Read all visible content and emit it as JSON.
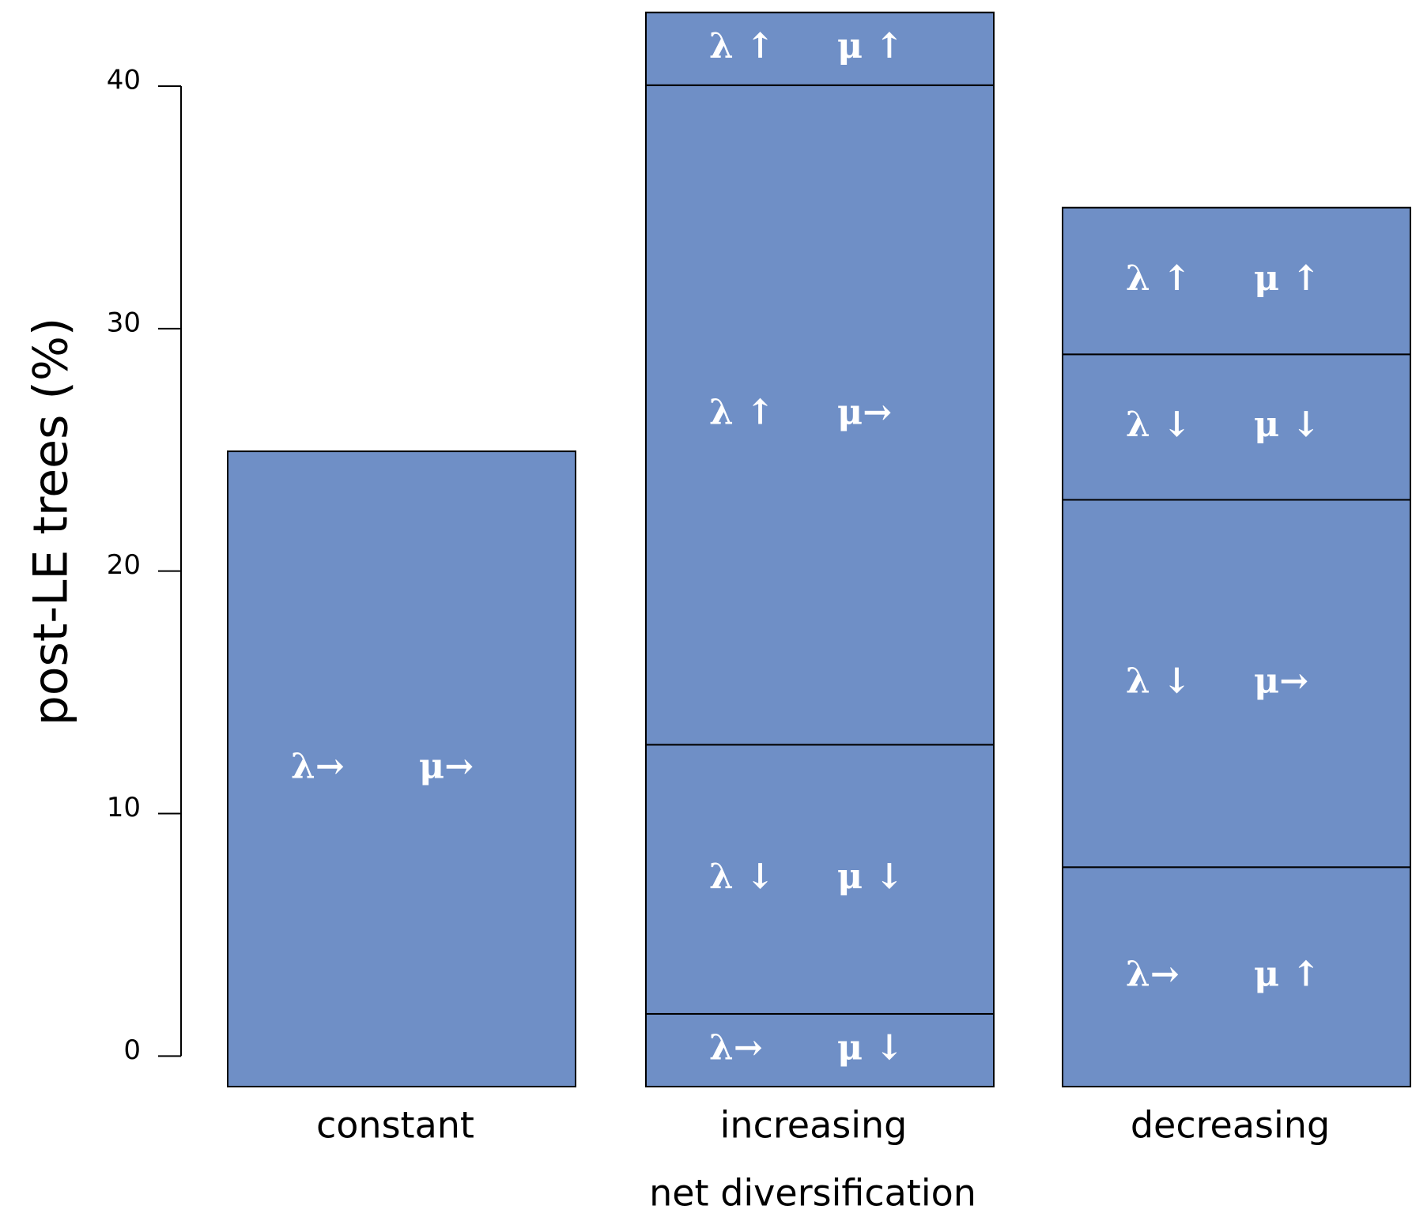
{
  "chart_data": {
    "type": "stacked-bar",
    "y_label": "post-LE trees (%)",
    "x_label": "net diversification",
    "categories": [
      "constant",
      "increasing",
      "decreasing"
    ],
    "stacks": [
      [
        {
          "value": 26.2,
          "labels": [
            "λ→",
            "μ→"
          ]
        }
      ],
      [
        {
          "value": 3.0,
          "labels": [
            "λ→",
            "μ ↓"
          ]
        },
        {
          "value": 11.1,
          "labels": [
            "λ ↓",
            "μ ↓"
          ]
        },
        {
          "value": 27.2,
          "labels": [
            "λ ↑",
            "μ→"
          ]
        },
        {
          "value": 3.0,
          "labels": [
            "λ ↑",
            "μ ↑"
          ]
        }
      ],
      [
        {
          "value": 9.05,
          "labels": [
            "λ→",
            "μ ↑"
          ]
        },
        {
          "value": 15.15,
          "labels": [
            "λ ↓",
            "μ→"
          ]
        },
        {
          "value": 6.0,
          "labels": [
            "λ ↓",
            "μ ↓"
          ]
        },
        {
          "value": 6.05,
          "labels": [
            "λ ↑",
            "μ ↑"
          ]
        }
      ]
    ],
    "color": "#6f8fc6",
    "ylim": [
      -1.26,
      43.07
    ],
    "yticks": [
      0,
      10,
      20,
      30,
      40
    ]
  }
}
